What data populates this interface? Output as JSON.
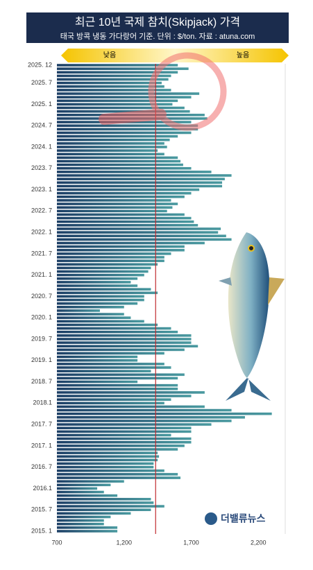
{
  "header": {
    "title": "최근 10년 국제 참치(Skipjack) 가격",
    "subtitle": "태국 방콕 냉동 가다랑어 기준. 단위 : $/ton. 자료 : atuna.com"
  },
  "scale_arrow": {
    "low": "낮음",
    "high": "높음"
  },
  "logo": "더밸류뉴스",
  "chart_data": {
    "type": "bar",
    "orientation": "horizontal",
    "color": "#3b7d8c",
    "categories": [
      "2025. 12",
      null,
      null,
      null,
      null,
      "2025. 7",
      null,
      null,
      null,
      null,
      null,
      "2025. 1",
      null,
      null,
      null,
      null,
      null,
      "2024. 7",
      null,
      null,
      null,
      null,
      null,
      "2024. 1",
      null,
      null,
      null,
      null,
      null,
      "2023. 7",
      null,
      null,
      null,
      null,
      null,
      "2023. 1",
      null,
      null,
      null,
      null,
      null,
      "2022. 7",
      null,
      null,
      null,
      null,
      null,
      "2022. 1",
      null,
      null,
      null,
      null,
      null,
      "2021. 7",
      null,
      null,
      null,
      null,
      null,
      "2021. 1",
      null,
      null,
      null,
      null,
      null,
      "2020. 7",
      null,
      null,
      null,
      null,
      null,
      "2020. 1",
      null,
      null,
      null,
      null,
      null,
      "2019. 7",
      null,
      null,
      null,
      null,
      null,
      "2019. 1",
      null,
      null,
      null,
      null,
      null,
      "2018. 7",
      null,
      null,
      null,
      null,
      null,
      "2018.1",
      null,
      null,
      null,
      null,
      null,
      "2017. 7",
      null,
      null,
      null,
      null,
      null,
      "2017. 1",
      null,
      null,
      null,
      null,
      null,
      "2016. 7",
      null,
      null,
      null,
      null,
      null,
      "2016.1",
      null,
      null,
      null,
      null,
      null,
      "2015. 7",
      null,
      null,
      null,
      null,
      null,
      "2015. 1"
    ],
    "values": [
      1600,
      1680,
      1600,
      1550,
      1530,
      1480,
      1500,
      1550,
      1760,
      1700,
      1600,
      1560,
      1650,
      1690,
      1800,
      1820,
      1700,
      1750,
      1750,
      1700,
      1600,
      1540,
      1500,
      1520,
      1450,
      1500,
      1600,
      1620,
      1640,
      1700,
      1850,
      2000,
      1950,
      1930,
      1930,
      1760,
      1700,
      1650,
      1550,
      1600,
      1560,
      1520,
      1650,
      1700,
      1720,
      1750,
      1920,
      1900,
      1960,
      2000,
      1800,
      1650,
      1650,
      1550,
      1500,
      1500,
      1450,
      1400,
      1380,
      1350,
      1300,
      1250,
      1300,
      1400,
      1450,
      1350,
      1350,
      1300,
      1200,
      1020,
      1200,
      1250,
      1350,
      1450,
      1550,
      1600,
      1700,
      1700,
      1700,
      1750,
      1650,
      1500,
      1300,
      1300,
      1500,
      1550,
      1400,
      1650,
      1600,
      1300,
      1600,
      1600,
      1800,
      1700,
      1550,
      1500,
      1800,
      2000,
      2300,
      2100,
      2000,
      1850,
      1700,
      1700,
      1550,
      1700,
      1700,
      1650,
      1600,
      1450,
      1460,
      1450,
      1420,
      1420,
      1500,
      1600,
      1620,
      1200,
      1100,
      1000,
      1050,
      1150,
      1400,
      1420,
      1500,
      1400,
      1250,
      1100,
      1050,
      1050,
      1150,
      1150
    ],
    "xlim": [
      700,
      2400
    ],
    "xticks": [
      700,
      {
        "value": 1200,
        "label": "1,200"
      },
      {
        "value": 1700,
        "label": "1,700"
      },
      {
        "value": 2200,
        "label": "2,200"
      }
    ],
    "reference_line": 1435,
    "reference_color": "#c0282d"
  }
}
